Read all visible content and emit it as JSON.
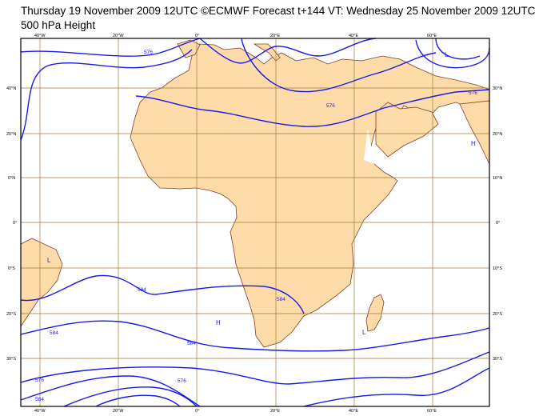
{
  "header": {
    "line1": "Thursday 19 November 2009 12UTC ©ECMWF Forecast t+144 VT: Wednesday 25 November 2009 12UTC",
    "line2": "500 hPa Height"
  },
  "map": {
    "top_labels": [
      "40°W",
      "20°W",
      "0°",
      "20°E",
      "40°E",
      "60°E"
    ],
    "bottom_labels": [
      "40°W",
      "20°W",
      "0°",
      "20°E",
      "40°E",
      "60°E"
    ],
    "left_labels": [
      "40°N",
      "20°N",
      "0°N",
      "0°",
      "0°S",
      "20°S",
      "30°S"
    ],
    "right_labels": [
      "30°N",
      "20°N",
      "10°N",
      "0°",
      "10°S",
      "20°S",
      "30°S"
    ],
    "contour_labels": [
      "576",
      "576",
      "576",
      "576",
      "584",
      "584",
      "584",
      "576",
      "584",
      "584"
    ],
    "pressure_markers": [
      "L",
      "H",
      "L",
      "H",
      "L"
    ],
    "colors": {
      "land": "#fddcaa",
      "coast": "#8b3c1e",
      "grid": "#a07830",
      "contour": "#1a1ae6",
      "frame": "#000000"
    }
  }
}
